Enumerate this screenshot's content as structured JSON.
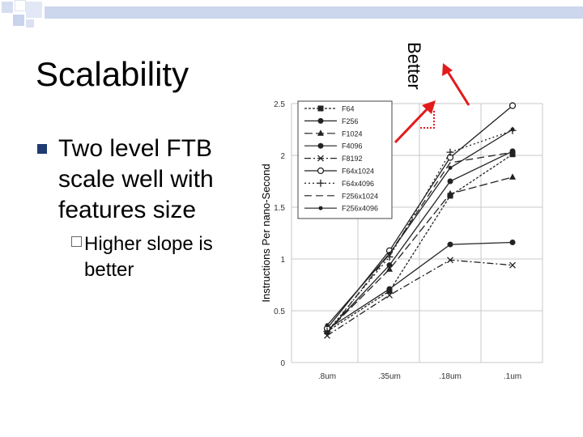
{
  "slide": {
    "title": "Scalability",
    "bullet": "Two level FTB scale well with features size",
    "sub_bullet": "Higher slope is better",
    "annotation": "Better",
    "accent_color": "#e31b1b",
    "bullet_color": "#1f3b73"
  },
  "chart_data": {
    "type": "line",
    "title": "",
    "xlabel": "",
    "ylabel": "Instructions Per nano-Second",
    "categories": [
      ".8um",
      ".35um",
      ".18um",
      ".1um"
    ],
    "ylim": [
      0,
      2.5
    ],
    "yticks": [
      "0",
      "0.5",
      "1",
      "1.5",
      "2",
      "2.5"
    ],
    "grid": true,
    "legend_position": "top-left",
    "series": [
      {
        "name": "F64",
        "values": [
          0.3,
          0.69,
          1.61,
          2.01
        ],
        "marker": "square",
        "dash": "3,2"
      },
      {
        "name": "F256",
        "values": [
          0.3,
          0.94,
          1.75,
          2.04
        ],
        "marker": "circle",
        "dash": ""
      },
      {
        "name": "F1024",
        "values": [
          0.3,
          0.9,
          1.63,
          1.79
        ],
        "marker": "triangle",
        "dash": "10,4"
      },
      {
        "name": "F4096",
        "values": [
          0.32,
          0.71,
          1.14,
          1.16
        ],
        "marker": "circle",
        "dash": ""
      },
      {
        "name": "F8192",
        "values": [
          0.26,
          0.65,
          0.99,
          0.94
        ],
        "marker": "x",
        "dash": "8,3,2,3"
      },
      {
        "name": "F64x1024",
        "values": [
          0.33,
          1.08,
          1.98,
          2.48
        ],
        "marker": "circle-open",
        "dash": ""
      },
      {
        "name": "F64x4096",
        "values": [
          0.3,
          1.02,
          2.03,
          2.24
        ],
        "marker": "plus",
        "dash": "2,3"
      },
      {
        "name": "F256x1024",
        "values": [
          0.28,
          1.05,
          1.93,
          2.03
        ],
        "marker": "none",
        "dash": "9,5"
      },
      {
        "name": "F256x4096",
        "values": [
          0.36,
          1.05,
          1.88,
          2.25
        ],
        "marker": "circle-small",
        "dash": ""
      }
    ]
  }
}
